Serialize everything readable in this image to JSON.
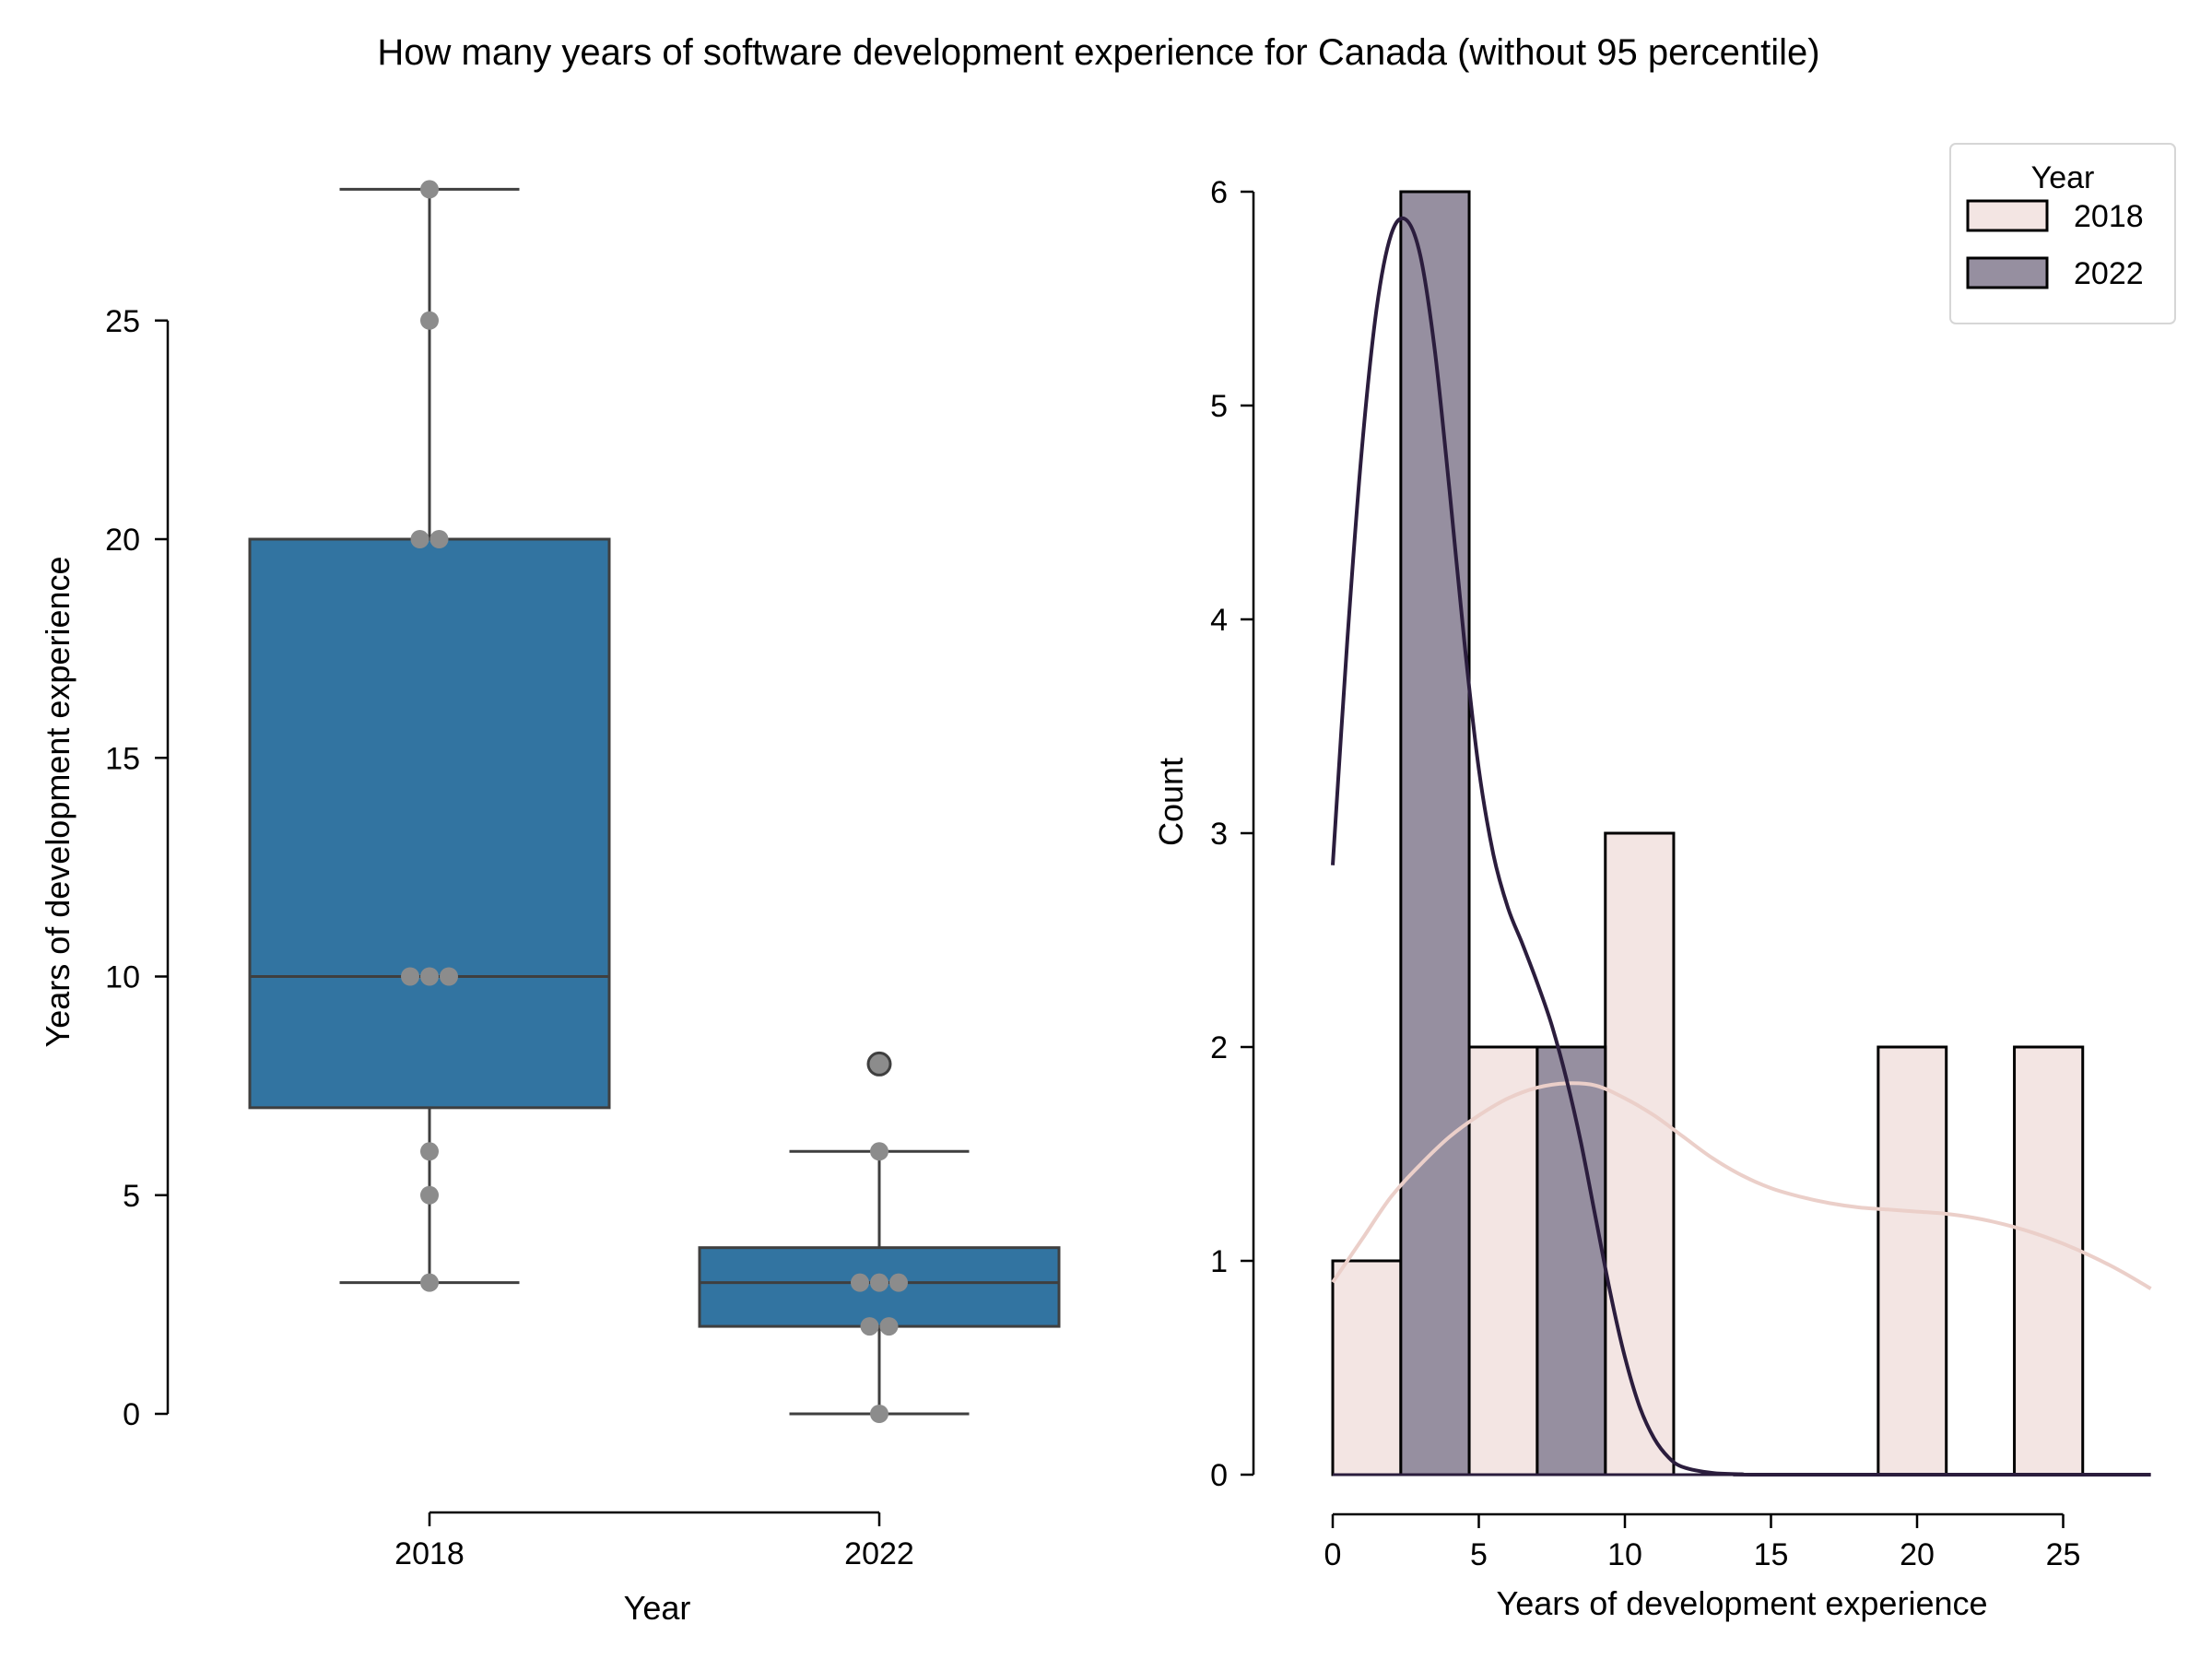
{
  "title": "How many years of software development experience for Canada (without 95 percentile)",
  "colors": {
    "box": "#3274a1",
    "boxEdge": "#3f3f3f",
    "swarm": "#8c8c8c",
    "hist2018": "#f3e5e3",
    "hist2022": "#968fa0",
    "kde2018": "#ebcfc9",
    "kde2022": "#2b1d3d",
    "axis": "#000000"
  },
  "chart_data": [
    {
      "type": "box",
      "xlabel": "Year",
      "ylabel": "Years of development experience",
      "categories": [
        "2018",
        "2022"
      ],
      "yticks": [
        0,
        5,
        10,
        15,
        20,
        25
      ],
      "ylim": [
        0,
        28
      ],
      "boxes": [
        {
          "category": "2018",
          "whisker_low": 3,
          "q1": 7,
          "median": 10,
          "q3": 20,
          "whisker_high": 28,
          "outliers": []
        },
        {
          "category": "2022",
          "whisker_low": 0,
          "q1": 2,
          "median": 3,
          "q3": 3.8,
          "whisker_high": 6,
          "outliers": [
            8
          ]
        }
      ],
      "points": [
        {
          "category": "2018",
          "values": [
            3,
            5,
            6,
            10,
            10,
            10,
            20,
            20,
            25,
            28
          ]
        },
        {
          "category": "2022",
          "values": [
            0,
            2,
            2,
            3,
            3,
            3,
            6
          ]
        }
      ]
    },
    {
      "type": "histogram",
      "xlabel": "Years of development experience",
      "ylabel": "Count",
      "xticks": [
        0,
        5,
        10,
        15,
        20,
        25
      ],
      "yticks": [
        0,
        1,
        2,
        3,
        4,
        5,
        6
      ],
      "xlim": [
        0,
        28
      ],
      "ylim": [
        0,
        6
      ],
      "legend": {
        "title": "Year",
        "position": "top-right",
        "entries": [
          "2018",
          "2022"
        ]
      },
      "series": [
        {
          "name": "2018",
          "bins": [
            {
              "x0": 0,
              "x1": 2.33,
              "count": 1
            },
            {
              "x0": 4.67,
              "x1": 7.0,
              "count": 2
            },
            {
              "x0": 9.33,
              "x1": 11.67,
              "count": 3
            },
            {
              "x0": 18.67,
              "x1": 21.0,
              "count": 2
            },
            {
              "x0": 23.33,
              "x1": 25.67,
              "count": 2
            }
          ],
          "kde": [
            [
              0,
              0.9
            ],
            [
              1,
              1.1
            ],
            [
              2,
              1.3
            ],
            [
              3,
              1.45
            ],
            [
              4,
              1.58
            ],
            [
              5,
              1.68
            ],
            [
              6,
              1.76
            ],
            [
              7,
              1.81
            ],
            [
              8,
              1.83
            ],
            [
              9,
              1.82
            ],
            [
              10,
              1.76
            ],
            [
              11,
              1.68
            ],
            [
              12,
              1.58
            ],
            [
              13,
              1.48
            ],
            [
              14,
              1.4
            ],
            [
              15,
              1.34
            ],
            [
              16,
              1.3
            ],
            [
              17,
              1.27
            ],
            [
              18,
              1.25
            ],
            [
              19,
              1.24
            ],
            [
              20,
              1.23
            ],
            [
              21,
              1.22
            ],
            [
              22,
              1.2
            ],
            [
              23,
              1.17
            ],
            [
              24,
              1.13
            ],
            [
              25,
              1.08
            ],
            [
              26,
              1.02
            ],
            [
              27,
              0.95
            ],
            [
              28,
              0.87
            ]
          ]
        },
        {
          "name": "2022",
          "bins": [
            {
              "x0": 2.33,
              "x1": 4.67,
              "count": 6
            },
            {
              "x0": 7.0,
              "x1": 9.33,
              "count": 2
            }
          ],
          "kde": [
            [
              0,
              2.85
            ],
            [
              0.5,
              3.9
            ],
            [
              1,
              4.8
            ],
            [
              1.5,
              5.45
            ],
            [
              2,
              5.8
            ],
            [
              2.5,
              5.87
            ],
            [
              3,
              5.7
            ],
            [
              3.5,
              5.25
            ],
            [
              4,
              4.6
            ],
            [
              4.5,
              3.9
            ],
            [
              5,
              3.3
            ],
            [
              5.5,
              2.9
            ],
            [
              6,
              2.65
            ],
            [
              6.5,
              2.48
            ],
            [
              7,
              2.3
            ],
            [
              7.5,
              2.1
            ],
            [
              8,
              1.85
            ],
            [
              8.5,
              1.55
            ],
            [
              9,
              1.2
            ],
            [
              9.5,
              0.85
            ],
            [
              10,
              0.55
            ],
            [
              10.5,
              0.32
            ],
            [
              11,
              0.17
            ],
            [
              11.5,
              0.08
            ],
            [
              12,
              0.035
            ],
            [
              13,
              0.008
            ],
            [
              14,
              0.002
            ],
            [
              15,
              0
            ],
            [
              28,
              0
            ]
          ]
        }
      ]
    }
  ]
}
